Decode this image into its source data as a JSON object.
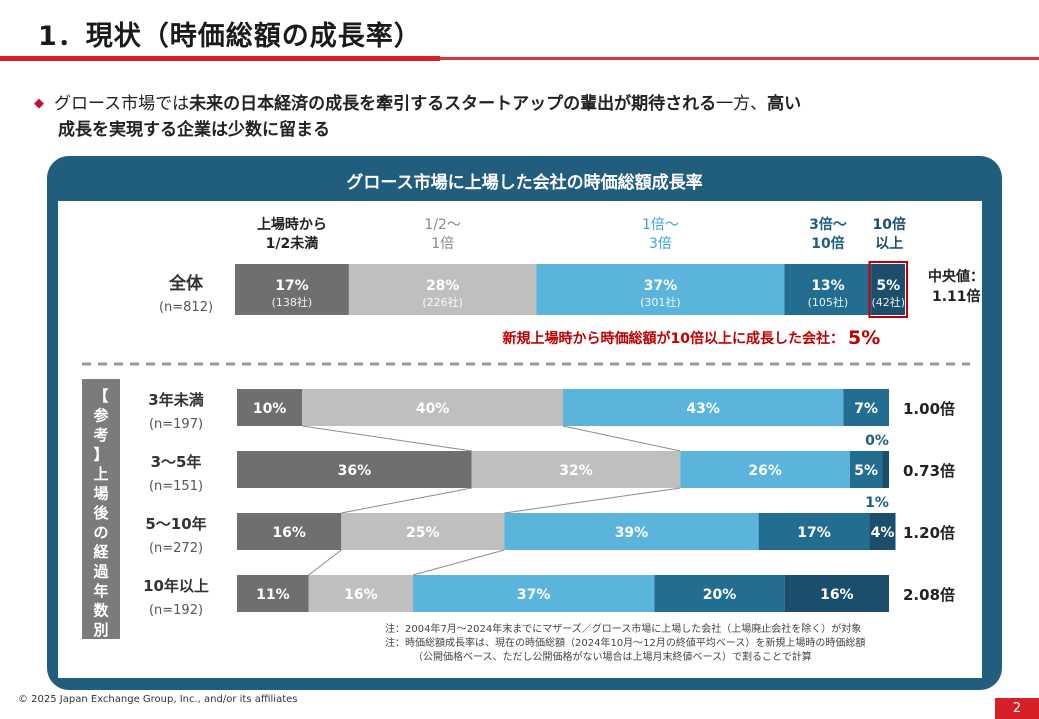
{
  "slide": {
    "title": "1．現状（時価総額の成長率）",
    "lead_prefix": "グロース市場では",
    "lead_bold1": "未来の日本経済の成長を牽引するスタートアップの輩出が期待される",
    "lead_mid": "一方、",
    "lead_bold2": "高い",
    "lead_line2": "成長を実現する企業は少数に留まる",
    "copyright": "© 2025 Japan Exchange Group, Inc., and/or its affiliates",
    "page_number": "2"
  },
  "colors": {
    "accent_red": "#d61f26",
    "panel_blue": "#215d7d",
    "seg_dark_gray": "#6f6f6f",
    "seg_light_gray": "#bfbfbf",
    "seg_light_blue": "#5ab4dc",
    "seg_mid_blue": "#236e90",
    "seg_navy": "#1a4e6c",
    "highlight_red": "#c00000"
  },
  "chart_data": {
    "type": "bar",
    "orientation": "horizontal-stacked-100",
    "title": "グロース市場に上場した会社の時価総額成長率",
    "categories": [
      "上場時から\n1/2未満",
      "1/2～\n1倍",
      "1倍～\n3倍",
      "3倍～\n10倍",
      "10倍\n以上"
    ],
    "overall": {
      "label": "全体",
      "n": "(n=812)",
      "values": [
        17,
        28,
        37,
        13,
        5
      ],
      "value_labels": [
        "17%",
        "28%",
        "37%",
        "13%",
        "5%"
      ],
      "counts": [
        "(138社)",
        "(226社)",
        "(301社)",
        "(105社)",
        "(42社)"
      ],
      "median_label": "中央値：",
      "median_value": "1.11倍"
    },
    "callout": {
      "text": "新規上場時から時価総額が10倍以上に成長した会社：",
      "value": "5%"
    },
    "reference_label": "【参考】上場後の経過年数別",
    "rows": [
      {
        "label": "3年未満",
        "n": "(n=197)",
        "values": [
          10,
          40,
          43,
          7,
          0
        ],
        "value_labels": [
          "10%",
          "40%",
          "43%",
          "7%",
          "0%"
        ],
        "median": "1.00倍"
      },
      {
        "label": "3～5年",
        "n": "(n=151)",
        "values": [
          36,
          32,
          26,
          5,
          1
        ],
        "value_labels": [
          "36%",
          "32%",
          "26%",
          "5%",
          "1%"
        ],
        "median": "0.73倍"
      },
      {
        "label": "5～10年",
        "n": "(n=272)",
        "values": [
          16,
          25,
          39,
          17,
          4
        ],
        "value_labels": [
          "16%",
          "25%",
          "39%",
          "17%",
          "4%"
        ],
        "median": "1.20倍"
      },
      {
        "label": "10年以上",
        "n": "(n=192)",
        "values": [
          11,
          16,
          37,
          20,
          16
        ],
        "value_labels": [
          "11%",
          "16%",
          "37%",
          "20%",
          "16%"
        ],
        "median": "2.08倍"
      }
    ],
    "notes": [
      "注：2004年7月～2024年末までにマザーズ／グロース市場に上場した会社（上場廃止会社を除く）が対象",
      "注：時価総額成長率は、現在の時価総額（2024年10月～12月の終値平均ベース）を新規上場時の時価総額",
      "（公開価格ベース、ただし公開価格がない場合は上場月末終値ベース）で割ることで計算"
    ]
  }
}
